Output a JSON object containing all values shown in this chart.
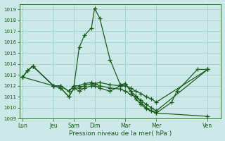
{
  "xlabel": "Pression niveau de la mer( hPa )",
  "background_color": "#cce8e8",
  "grid_color": "#99cccc",
  "line_color": "#1a5c1a",
  "ylim": [
    1009,
    1019.5
  ],
  "yticks": [
    1009,
    1010,
    1011,
    1012,
    1013,
    1014,
    1015,
    1016,
    1017,
    1018,
    1019
  ],
  "x_tick_labels": [
    "Lun",
    "Jeu",
    "Sam",
    "Dim",
    "Mar",
    "Mer",
    "Ven"
  ],
  "x_tick_positions": [
    0,
    3,
    5,
    7,
    10,
    13,
    18
  ],
  "xlim": [
    -0.3,
    19.3
  ],
  "series": [
    {
      "x": [
        0,
        0.5,
        1.0,
        3.0,
        3.7,
        4.5,
        5.0,
        5.5,
        6.0,
        6.7,
        7.0,
        7.5,
        8.5,
        9.5,
        10.0,
        10.5,
        11.0,
        11.5,
        12.0,
        12.5,
        13.0,
        18.0
      ],
      "y": [
        1012.8,
        1013.4,
        1013.8,
        1012.0,
        1012.0,
        1011.5,
        1012.0,
        1015.5,
        1016.6,
        1017.3,
        1019.1,
        1018.2,
        1014.4,
        1012.1,
        1012.2,
        1011.5,
        1011.1,
        1010.5,
        1010.0,
        1009.7,
        1009.5,
        1009.2
      ]
    },
    {
      "x": [
        0,
        0.5,
        1.0,
        3.0,
        3.7,
        4.5,
        5.0,
        5.5,
        6.0,
        6.7,
        7.0,
        7.5,
        8.5,
        9.5,
        10.0,
        10.5,
        11.0,
        11.5,
        12.0,
        12.5,
        13.0,
        18.0
      ],
      "y": [
        1012.8,
        1013.4,
        1013.8,
        1012.0,
        1012.0,
        1011.5,
        1012.0,
        1012.0,
        1012.2,
        1012.3,
        1012.2,
        1012.3,
        1012.1,
        1012.0,
        1012.0,
        1011.8,
        1011.5,
        1011.3,
        1011.0,
        1010.8,
        1010.5,
        1013.5
      ]
    },
    {
      "x": [
        0,
        0.5,
        1.0,
        3.0,
        3.7,
        4.5,
        5.0,
        5.5,
        6.0,
        6.7,
        7.0,
        7.5,
        8.5,
        9.5,
        10.0,
        10.5,
        11.0,
        11.5,
        12.0,
        12.5,
        13.0,
        18.0
      ],
      "y": [
        1012.8,
        1013.4,
        1013.8,
        1012.0,
        1011.8,
        1011.0,
        1011.8,
        1011.8,
        1012.0,
        1012.2,
        1012.2,
        1012.0,
        1011.8,
        1011.7,
        1011.5,
        1011.2,
        1011.0,
        1010.7,
        1010.3,
        1010.0,
        1009.7,
        1013.5
      ]
    },
    {
      "x": [
        0,
        3.0,
        3.7,
        4.5,
        5.0,
        5.5,
        6.0,
        6.7,
        7.0,
        7.5,
        8.5,
        9.5,
        10.0,
        10.5,
        11.0,
        11.5,
        12.0,
        12.5,
        13.0,
        14.5,
        15.0,
        17.0,
        18.0
      ],
      "y": [
        1012.8,
        1012.0,
        1011.8,
        1011.0,
        1011.8,
        1011.5,
        1011.8,
        1012.0,
        1012.0,
        1011.8,
        1011.5,
        1012.0,
        1012.2,
        1011.5,
        1010.8,
        1010.3,
        1009.9,
        1009.7,
        1009.5,
        1010.5,
        1011.5,
        1013.5,
        1013.5
      ]
    }
  ]
}
